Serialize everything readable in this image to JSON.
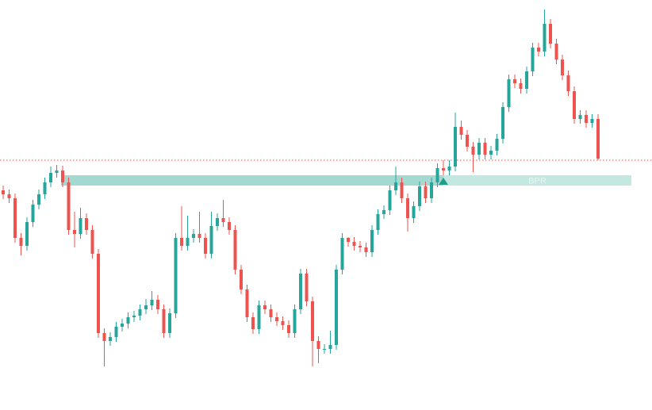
{
  "chart_data": {
    "type": "candlestick",
    "up_color": "#26a69a",
    "down_color": "#ef5350",
    "ylim": [
      0,
      517
    ],
    "open": [
      277,
      272,
      267,
      217,
      207,
      237,
      259,
      272,
      287,
      299,
      302,
      287,
      227,
      222,
      242,
      227,
      197,
      97,
      87,
      92,
      105,
      109,
      117,
      119,
      127,
      132,
      139,
      127,
      97,
      122,
      217,
      207,
      217,
      222,
      217,
      197,
      232,
      242,
      237,
      227,
      177,
      152,
      117,
      102,
      132,
      127,
      117,
      112,
      107,
      97,
      127,
      172,
      137,
      87,
      77,
      77,
      82,
      177,
      217,
      212,
      207,
      205,
      199,
      227,
      247,
      252,
      277,
      287,
      267,
      242,
      257,
      282,
      267,
      287,
      305,
      302,
      307,
      357,
      347,
      332,
      322,
      337,
      322,
      327,
      342,
      382,
      417,
      412,
      405,
      427,
      457,
      452,
      487,
      462,
      442,
      422,
      402,
      367,
      372,
      362,
      367
    ],
    "high": [
      283,
      278,
      273,
      223,
      243,
      265,
      278,
      293,
      307,
      309,
      308,
      293,
      250,
      255,
      248,
      233,
      203,
      103,
      98,
      111,
      115,
      123,
      125,
      133,
      140,
      150,
      145,
      133,
      128,
      223,
      257,
      245,
      228,
      250,
      223,
      250,
      248,
      265,
      243,
      233,
      183,
      158,
      123,
      138,
      138,
      133,
      123,
      118,
      113,
      133,
      178,
      178,
      143,
      93,
      83,
      100,
      183,
      223,
      218,
      218,
      213,
      211,
      233,
      253,
      258,
      283,
      307,
      293,
      273,
      263,
      288,
      288,
      293,
      311,
      315,
      315,
      375,
      365,
      353,
      338,
      343,
      343,
      333,
      348,
      388,
      423,
      423,
      418,
      433,
      463,
      463,
      505,
      493,
      468,
      448,
      428,
      408,
      378,
      378,
      373,
      373
    ],
    "low": [
      266,
      261,
      211,
      195,
      201,
      231,
      253,
      266,
      281,
      293,
      281,
      221,
      205,
      216,
      221,
      191,
      91,
      55,
      81,
      86,
      99,
      103,
      111,
      113,
      121,
      126,
      121,
      91,
      91,
      116,
      201,
      201,
      211,
      211,
      191,
      191,
      226,
      231,
      221,
      171,
      146,
      111,
      96,
      96,
      121,
      111,
      106,
      101,
      91,
      91,
      121,
      131,
      55,
      59,
      71,
      71,
      76,
      171,
      206,
      201,
      199,
      193,
      193,
      221,
      241,
      246,
      271,
      261,
      225,
      236,
      251,
      261,
      261,
      281,
      296,
      296,
      301,
      341,
      326,
      300,
      316,
      316,
      316,
      321,
      336,
      376,
      406,
      399,
      399,
      421,
      446,
      446,
      456,
      436,
      416,
      396,
      361,
      361,
      356,
      356,
      315
    ],
    "close": [
      272,
      267,
      217,
      207,
      237,
      259,
      272,
      287,
      299,
      302,
      287,
      227,
      222,
      242,
      227,
      197,
      97,
      87,
      92,
      105,
      109,
      117,
      119,
      127,
      132,
      139,
      127,
      97,
      122,
      217,
      207,
      217,
      222,
      217,
      197,
      232,
      242,
      237,
      227,
      177,
      152,
      117,
      102,
      132,
      127,
      117,
      112,
      107,
      97,
      127,
      172,
      137,
      87,
      77,
      77,
      82,
      177,
      217,
      212,
      207,
      205,
      199,
      227,
      247,
      252,
      277,
      287,
      267,
      242,
      257,
      282,
      267,
      287,
      305,
      302,
      307,
      357,
      347,
      332,
      322,
      337,
      322,
      327,
      342,
      382,
      417,
      412,
      405,
      427,
      457,
      452,
      487,
      462,
      442,
      422,
      402,
      367,
      372,
      362,
      367,
      317
    ],
    "price_line": {
      "value": 315,
      "color": "#ef5350"
    },
    "zone": {
      "label": "BPR",
      "high": 296,
      "low": 283,
      "start": 10,
      "end": 74,
      "color": "#a3d9d1",
      "extension_color": "#c3e7e1"
    }
  }
}
